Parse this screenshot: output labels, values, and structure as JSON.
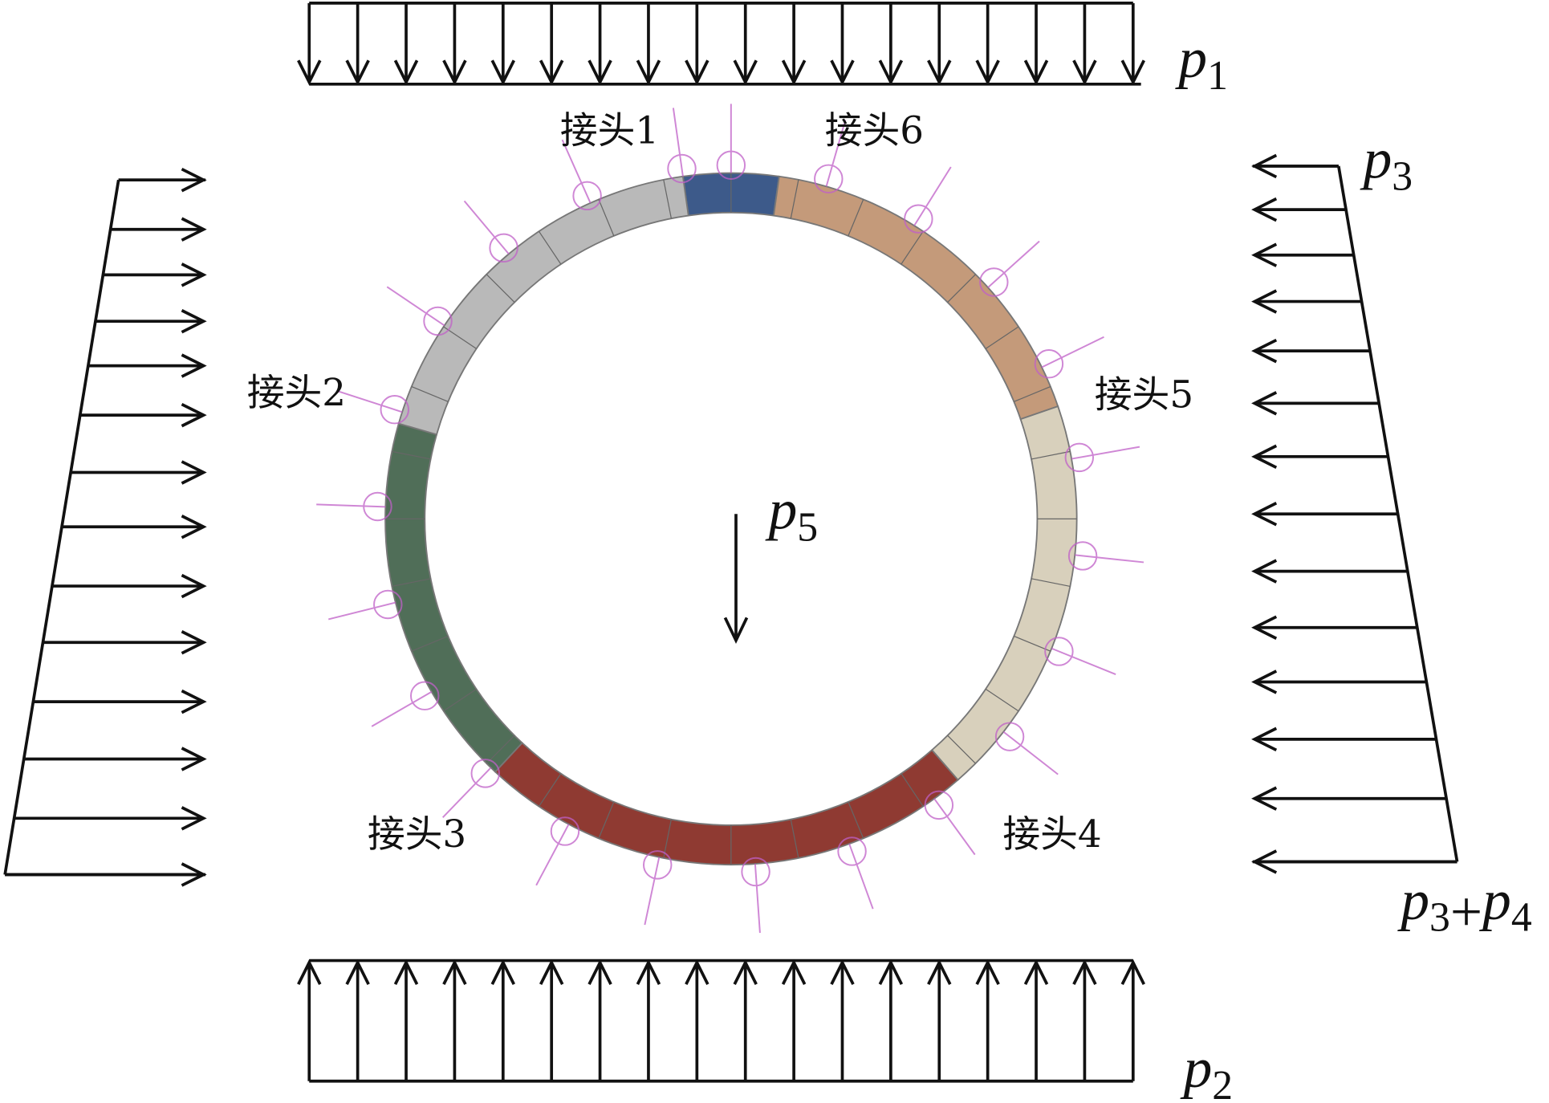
{
  "joints": [
    "接头1",
    "接头2",
    "接头3",
    "接头4",
    "接头5",
    "接头6"
  ],
  "loads": {
    "p1": {
      "terms": [
        {
          "base": "p",
          "sub": "1"
        }
      ]
    },
    "p2": {
      "terms": [
        {
          "base": "p",
          "sub": "2"
        }
      ]
    },
    "p3": {
      "terms": [
        {
          "base": "p",
          "sub": "3"
        }
      ]
    },
    "p5": {
      "terms": [
        {
          "base": "p",
          "sub": "5"
        }
      ]
    },
    "p3p4": {
      "terms": [
        {
          "base": "p",
          "sub": "3"
        },
        {
          "base": "p",
          "sub": "4"
        }
      ],
      "operator": "+"
    }
  }
}
